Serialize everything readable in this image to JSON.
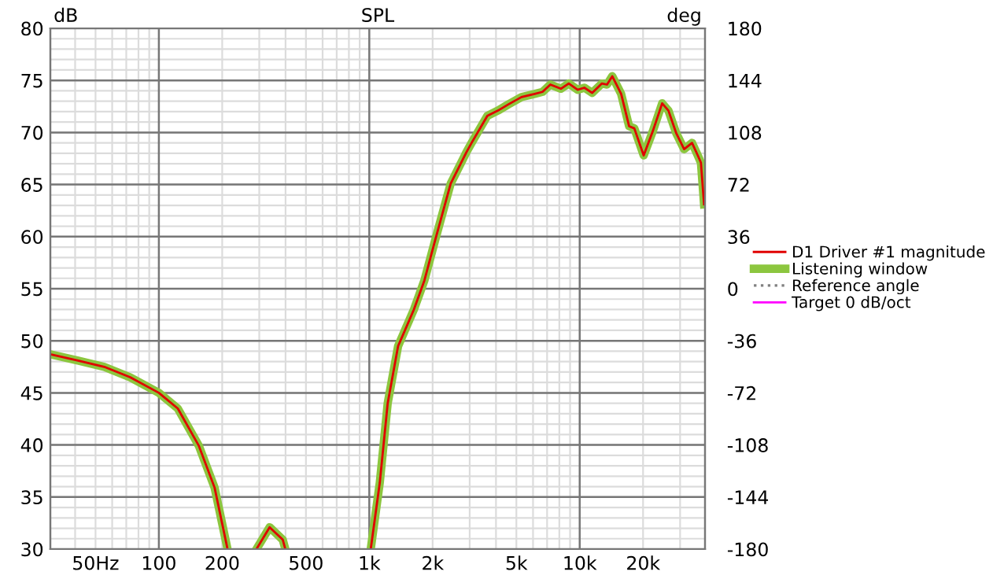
{
  "chart_data": {
    "type": "line",
    "title": "SPL",
    "ylabel": "dB",
    "y2label": "deg",
    "x": [
      30.5,
      41.3,
      55,
      73,
      100,
      123,
      155,
      184,
      212,
      250,
      291,
      336,
      388,
      399,
      600,
      1016,
      1122,
      1223,
      1371,
      1629,
      1828,
      2052,
      2437,
      2893,
      3063,
      3640,
      4086,
      4585,
      5290,
      6106,
      6656,
      7255,
      8135,
      8870,
      9780,
      10520,
      11470,
      12730,
      13480,
      14280,
      15740,
      17170,
      18170,
      20140,
      22230,
      24650,
      26410,
      28790,
      31350,
      34190,
      36210,
      37680,
      38990
    ],
    "series": [
      {
        "name": "D1 Driver #1 magnitude",
        "color": "#e00000",
        "values": [
          48.7,
          48.1,
          47.5,
          46.5,
          45.0,
          43.5,
          39.9,
          35.9,
          30.0,
          null,
          30.0,
          32.1,
          30.9,
          30.0,
          null,
          30.0,
          36.4,
          44.0,
          49.5,
          53.0,
          55.8,
          59.6,
          65.1,
          68.1,
          69.0,
          71.6,
          72.1,
          72.7,
          73.4,
          73.7,
          73.9,
          74.6,
          74.2,
          74.7,
          74.1,
          74.3,
          73.8,
          74.7,
          74.6,
          75.4,
          73.7,
          70.6,
          70.4,
          67.8,
          70.1,
          72.8,
          72.1,
          69.9,
          68.4,
          69.0,
          67.9,
          67.1,
          63.1
        ]
      },
      {
        "name": "Listening window",
        "color": "#8cc63f",
        "values": [
          48.7,
          48.1,
          47.5,
          46.5,
          45.0,
          43.5,
          39.9,
          35.9,
          30.0,
          null,
          30.0,
          32.1,
          30.9,
          30.0,
          null,
          30.0,
          36.4,
          44.0,
          49.5,
          53.0,
          55.8,
          59.6,
          65.1,
          68.1,
          69.0,
          71.6,
          72.1,
          72.7,
          73.4,
          73.7,
          73.9,
          74.6,
          74.2,
          74.7,
          74.1,
          74.3,
          73.8,
          74.7,
          74.6,
          75.4,
          73.7,
          70.6,
          70.4,
          67.8,
          70.1,
          72.8,
          72.1,
          69.9,
          68.4,
          69.0,
          67.9,
          67.1,
          63.1
        ]
      },
      {
        "name": "Reference angle",
        "color": "#808080",
        "line_style": "dotted",
        "values": [
          null,
          null,
          null,
          null,
          null,
          null,
          null,
          null,
          null,
          null,
          null,
          null,
          null,
          null,
          null,
          null,
          null,
          null,
          null,
          null,
          null,
          null,
          null,
          null,
          null,
          null,
          null,
          null,
          null,
          null,
          null,
          null,
          null,
          null,
          null,
          null,
          null,
          null,
          null,
          null,
          null,
          null,
          null,
          null,
          null,
          null,
          null,
          null,
          null,
          null,
          null,
          null,
          null
        ]
      },
      {
        "name": "Target 0 dB/oct",
        "color": "#ff00ff",
        "values": [
          null,
          null,
          null,
          null,
          null,
          null,
          null,
          null,
          null,
          null,
          null,
          null,
          null,
          null,
          null,
          null,
          null,
          null,
          null,
          null,
          null,
          null,
          null,
          null,
          null,
          null,
          null,
          null,
          null,
          null,
          null,
          null,
          null,
          null,
          null,
          null,
          null,
          null,
          null,
          null,
          null,
          null,
          null,
          null,
          null,
          null,
          null,
          null,
          null,
          null,
          null,
          null,
          null
        ]
      }
    ],
    "log": "x",
    "xlim": [
      30.5,
      39400
    ],
    "xticks": [
      {
        "value": 50,
        "label": "50Hz"
      },
      100,
      200,
      500,
      {
        "value": 1000,
        "label": "1k"
      },
      {
        "value": 2000,
        "label": "2k"
      },
      {
        "value": 5000,
        "label": "5k"
      },
      {
        "value": 10000,
        "label": "10k"
      },
      {
        "value": 20000,
        "label": "20k"
      }
    ],
    "ylim": [
      30,
      80
    ],
    "yticks": [
      30,
      35,
      40,
      45,
      50,
      55,
      60,
      65,
      70,
      75,
      80
    ],
    "y2lim": [
      -180,
      180
    ],
    "y2ticks": [
      -180,
      -144,
      -108,
      -72,
      -36,
      0,
      36,
      72,
      108,
      144,
      180
    ],
    "grid": true,
    "legend": "right",
    "line_style": "solid"
  }
}
